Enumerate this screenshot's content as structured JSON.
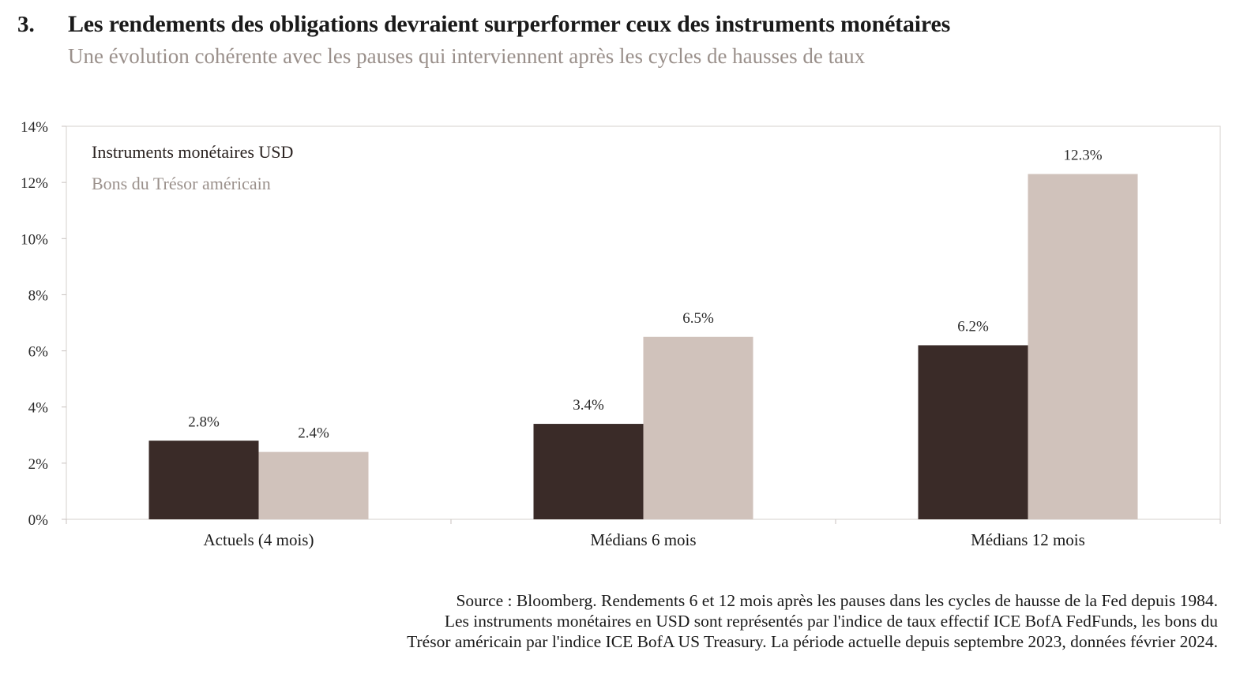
{
  "header": {
    "number": "3.",
    "title": "Les rendements des obligations devraient surperformer ceux des instruments monétaires",
    "subtitle": "Une évolution cohérente avec les pauses qui interviennent après les cycles de hausses de taux"
  },
  "legend": {
    "usd": "Instruments monétaires USD",
    "treasury": "Bons du Trésor américain"
  },
  "chart_data": {
    "type": "bar",
    "categories": [
      "Actuels (4 mois)",
      "Médians 6 mois",
      "Médians 12 mois"
    ],
    "series": [
      {
        "name": "Instruments monétaires USD",
        "values": [
          2.8,
          3.4,
          6.2
        ],
        "labels": [
          "2.8%",
          "3.4%",
          "6.2%"
        ],
        "color": "#3a2b28"
      },
      {
        "name": "Bons du Trésor américain",
        "values": [
          2.4,
          6.5,
          12.3
        ],
        "labels": [
          "2.4%",
          "6.5%",
          "12.3%"
        ],
        "color": "#d0c2bb"
      }
    ],
    "yticks": [
      0,
      2,
      4,
      6,
      8,
      10,
      12,
      14
    ],
    "ytick_labels": [
      "0%",
      "2%",
      "4%",
      "6%",
      "8%",
      "10%",
      "12%",
      "14%"
    ],
    "ylim": [
      0,
      14
    ],
    "xlabel": "",
    "ylabel": "",
    "grid": false,
    "legend_position": "top-left"
  },
  "footer": {
    "line1": "Source : Bloomberg. Rendements 6 et 12 mois après les pauses dans les cycles de hausse de la Fed depuis 1984.",
    "line2": "Les instruments monétaires en USD sont représentés par l'indice de taux effectif ICE BofA FedFunds, les bons du",
    "line3": "Trésor américain par l'indice ICE BofA US Treasury. La période actuelle depuis septembre 2023, données février 2024."
  }
}
